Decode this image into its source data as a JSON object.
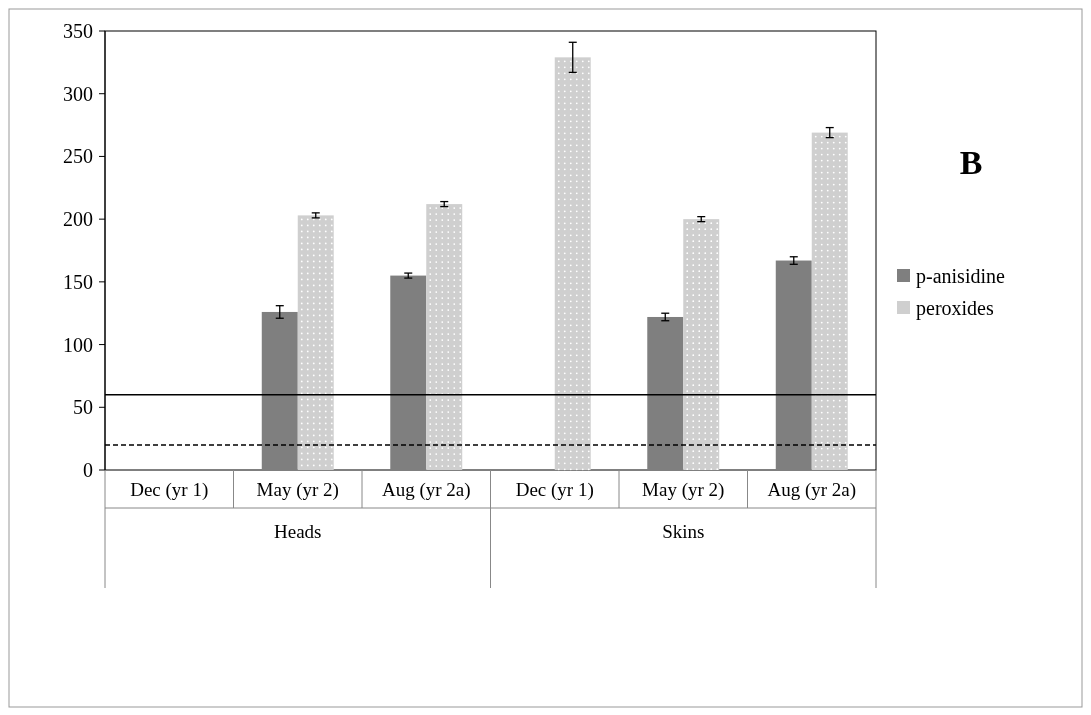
{
  "chart_data": {
    "type": "bar",
    "categories": [
      "Dec (yr 1)",
      "May (yr 2)",
      "Aug (yr 2a)",
      "Dec (yr 1)",
      "May (yr 2)",
      "Aug (yr 2a)"
    ],
    "series": [
      {
        "name": "p-anisidine",
        "color": "#7f7f7f",
        "values": [
          null,
          126,
          155,
          null,
          122,
          167
        ],
        "errors": [
          null,
          5,
          2,
          null,
          3,
          3
        ]
      },
      {
        "name": "peroxides",
        "color": "#cfcfcf",
        "values": [
          null,
          203,
          212,
          329,
          200,
          269
        ],
        "errors": [
          null,
          2,
          2,
          12,
          2,
          4
        ]
      }
    ],
    "ylim": [
      0,
      350
    ],
    "yticks": [
      0,
      50,
      100,
      150,
      200,
      250,
      300,
      350
    ],
    "legend": "right",
    "grid": false,
    "ref_lines": [
      {
        "axis": "y",
        "value": 60,
        "line_style": "solid"
      },
      {
        "axis": "y",
        "value": 20,
        "line_style": "dashed"
      }
    ],
    "annotations": [
      "Heads",
      "Skins",
      "B"
    ]
  }
}
